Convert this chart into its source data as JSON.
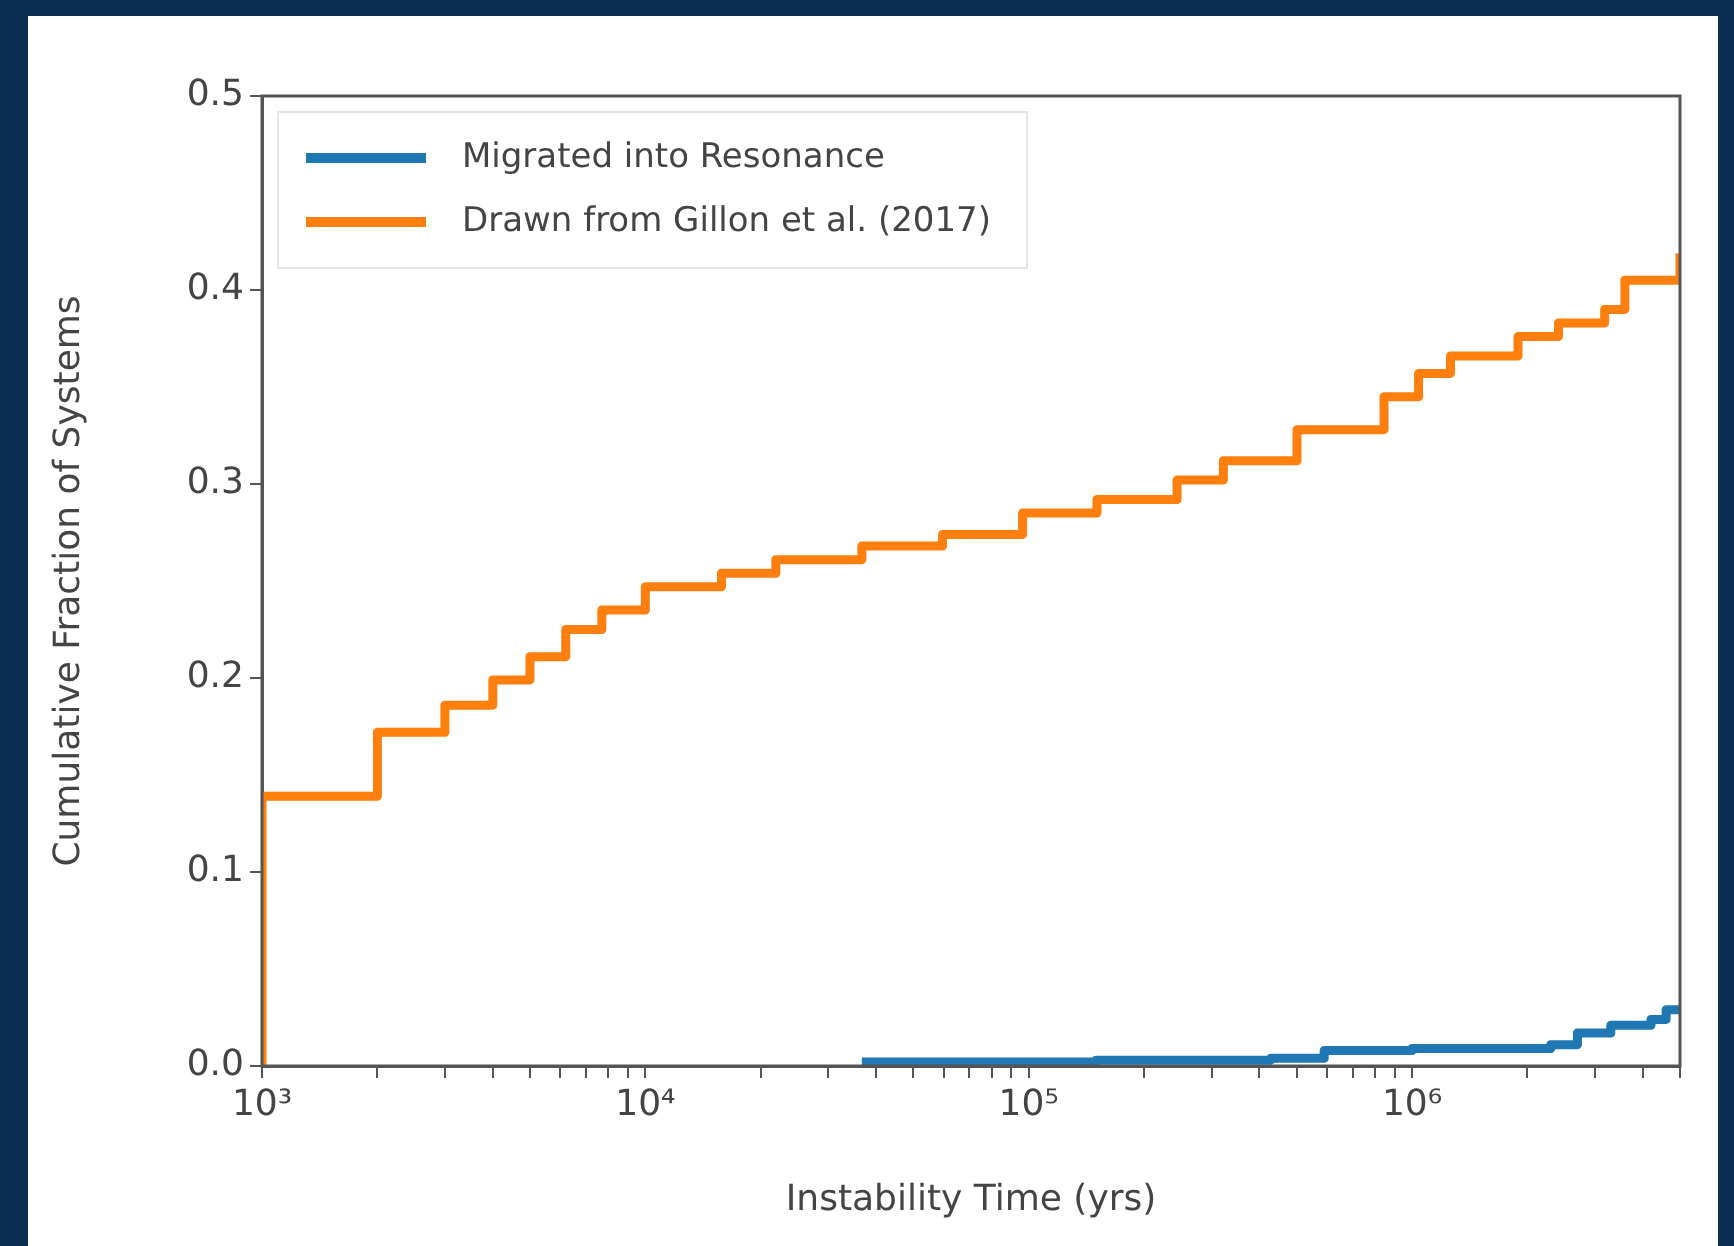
{
  "chart_data": {
    "type": "step",
    "xlabel": "Instability Time (yrs)",
    "ylabel": "Cumulative Fraction of Systems",
    "log": "x",
    "xlim": [
      1000,
      5000000
    ],
    "ylim": [
      0,
      0.5
    ],
    "xticks": [
      {
        "value": 1000,
        "label": "10³"
      },
      {
        "value": 2000,
        "label": null
      },
      {
        "value": 3000,
        "label": null
      },
      {
        "value": 4000,
        "label": null
      },
      {
        "value": 5000,
        "label": null
      },
      {
        "value": 6000,
        "label": null
      },
      {
        "value": 7000,
        "label": null
      },
      {
        "value": 8000,
        "label": null
      },
      {
        "value": 9000,
        "label": null
      },
      {
        "value": 10000,
        "label": "10⁴"
      },
      {
        "value": 20000,
        "label": null
      },
      {
        "value": 30000,
        "label": null
      },
      {
        "value": 40000,
        "label": null
      },
      {
        "value": 50000,
        "label": null
      },
      {
        "value": 60000,
        "label": null
      },
      {
        "value": 70000,
        "label": null
      },
      {
        "value": 80000,
        "label": null
      },
      {
        "value": 90000,
        "label": null
      },
      {
        "value": 100000,
        "label": "10⁵"
      },
      {
        "value": 200000,
        "label": null
      },
      {
        "value": 300000,
        "label": null
      },
      {
        "value": 400000,
        "label": null
      },
      {
        "value": 500000,
        "label": null
      },
      {
        "value": 600000,
        "label": null
      },
      {
        "value": 700000,
        "label": null
      },
      {
        "value": 800000,
        "label": null
      },
      {
        "value": 900000,
        "label": null
      },
      {
        "value": 1000000,
        "label": "10⁶"
      },
      {
        "value": 2000000,
        "label": null
      },
      {
        "value": 3000000,
        "label": null
      },
      {
        "value": 4000000,
        "label": null
      },
      {
        "value": 5000000,
        "label": null
      }
    ],
    "yticks": [
      {
        "value": 0,
        "label": "0.0"
      },
      {
        "value": 0.1,
        "label": "0.1"
      },
      {
        "value": 0.2,
        "label": "0.2"
      },
      {
        "value": 0.3,
        "label": "0.3"
      },
      {
        "value": 0.4,
        "label": "0.4"
      },
      {
        "value": 0.5,
        "label": "0.5"
      }
    ],
    "grid": false,
    "legend": "top left",
    "line_style": "solid",
    "marker": "none",
    "series": [
      {
        "name": "Migrated into Resonance",
        "color": "#1f77b4",
        "x": [
          36700,
          150000,
          428000,
          590000,
          1000000,
          2300000,
          2700000,
          3300000,
          4200000,
          4600000,
          5000000
        ],
        "values": [
          0.002,
          0.003,
          0.004,
          0.008,
          0.009,
          0.011,
          0.017,
          0.021,
          0.024,
          0.029,
          0.03
        ]
      },
      {
        "name": "Drawn from Gillon et al. (2017)",
        "color": "#ff7f0e",
        "x": [
          1000,
          1000,
          2000,
          3000,
          4000,
          5000,
          6200,
          7700,
          10000,
          15800,
          21900,
          36700,
          59600,
          96400,
          150700,
          243800,
          322000,
          501000,
          845000,
          1040000,
          1260000,
          1890000,
          2410000,
          3180000,
          3590000,
          5000000
        ],
        "values": [
          0,
          0.139,
          0.172,
          0.186,
          0.199,
          0.211,
          0.225,
          0.235,
          0.247,
          0.254,
          0.261,
          0.268,
          0.274,
          0.285,
          0.292,
          0.302,
          0.312,
          0.328,
          0.345,
          0.357,
          0.366,
          0.376,
          0.383,
          0.39,
          0.405,
          0.419
        ]
      }
    ]
  }
}
